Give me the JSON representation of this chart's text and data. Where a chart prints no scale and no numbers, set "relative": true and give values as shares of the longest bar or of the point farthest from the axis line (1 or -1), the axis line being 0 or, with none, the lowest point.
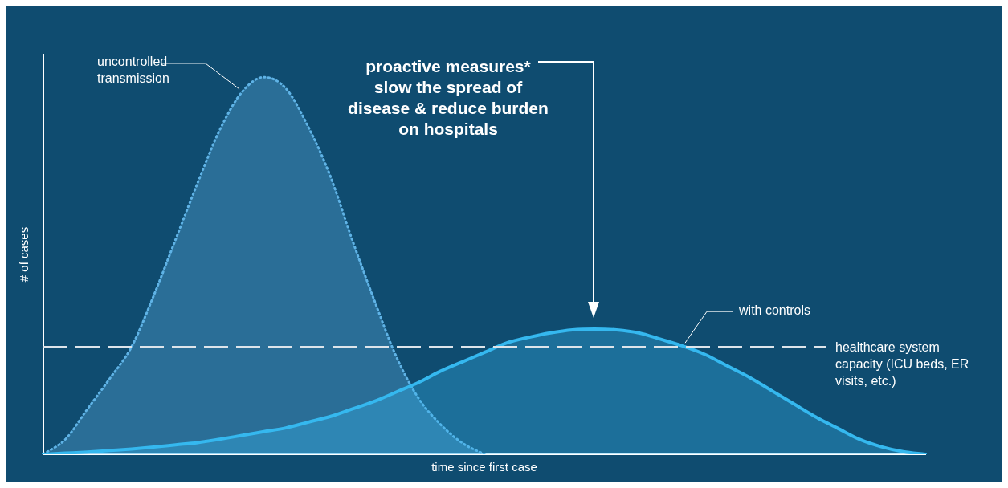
{
  "chart_data": {
    "type": "area",
    "relative": true,
    "xlabel": "time since first case",
    "ylabel": "# of cases",
    "marker": "none",
    "categories": [
      null,
      null,
      null,
      null,
      null,
      null,
      null,
      null,
      null,
      null,
      null,
      null,
      null,
      null,
      null,
      null,
      null,
      null,
      null,
      null,
      null,
      null,
      null,
      null,
      null,
      null,
      null,
      null,
      null,
      null,
      null,
      null,
      null,
      null,
      null,
      null,
      null,
      null,
      null,
      null,
      null
    ],
    "series": [
      {
        "name": "uncontrolled transmission",
        "color": "#5fb3e6",
        "line_style": "dotted",
        "values": [
          0,
          0.04,
          0.12,
          0.2,
          0.285,
          0.42,
          0.57,
          0.72,
          0.86,
          0.96,
          1,
          0.97,
          0.87,
          0.74,
          0.57,
          0.41,
          0.26,
          0.15,
          0.08,
          0.03,
          0,
          null,
          null,
          null,
          null,
          null,
          null,
          null,
          null,
          null,
          null,
          null,
          null,
          null,
          null,
          null,
          null,
          null,
          null,
          null,
          null
        ]
      },
      {
        "name": "with controls",
        "color": "#35b8ef",
        "line_style": "solid",
        "values": [
          0,
          0.003,
          0.006,
          0.01,
          0.014,
          0.019,
          0.025,
          0.031,
          0.04,
          0.05,
          0.06,
          0.07,
          0.085,
          0.1,
          0.12,
          0.14,
          0.165,
          0.19,
          0.22,
          0.245,
          0.27,
          0.295,
          0.31,
          0.322,
          0.33,
          0.332,
          0.33,
          0.322,
          0.305,
          0.287,
          0.265,
          0.235,
          0.205,
          0.17,
          0.135,
          0.1,
          0.07,
          0.04,
          0.02,
          0.007,
          0
        ]
      }
    ],
    "ref_lines": [
      {
        "axis": "y",
        "value": 0.285,
        "label": "healthcare system capacity (ICU beds, ER visits, etc.)",
        "color": "#dde4ea",
        "line_style": "dashed"
      }
    ],
    "annotations": [
      "proactive measures* slow the spread of disease & reduce burden on hospitals"
    ]
  }
}
